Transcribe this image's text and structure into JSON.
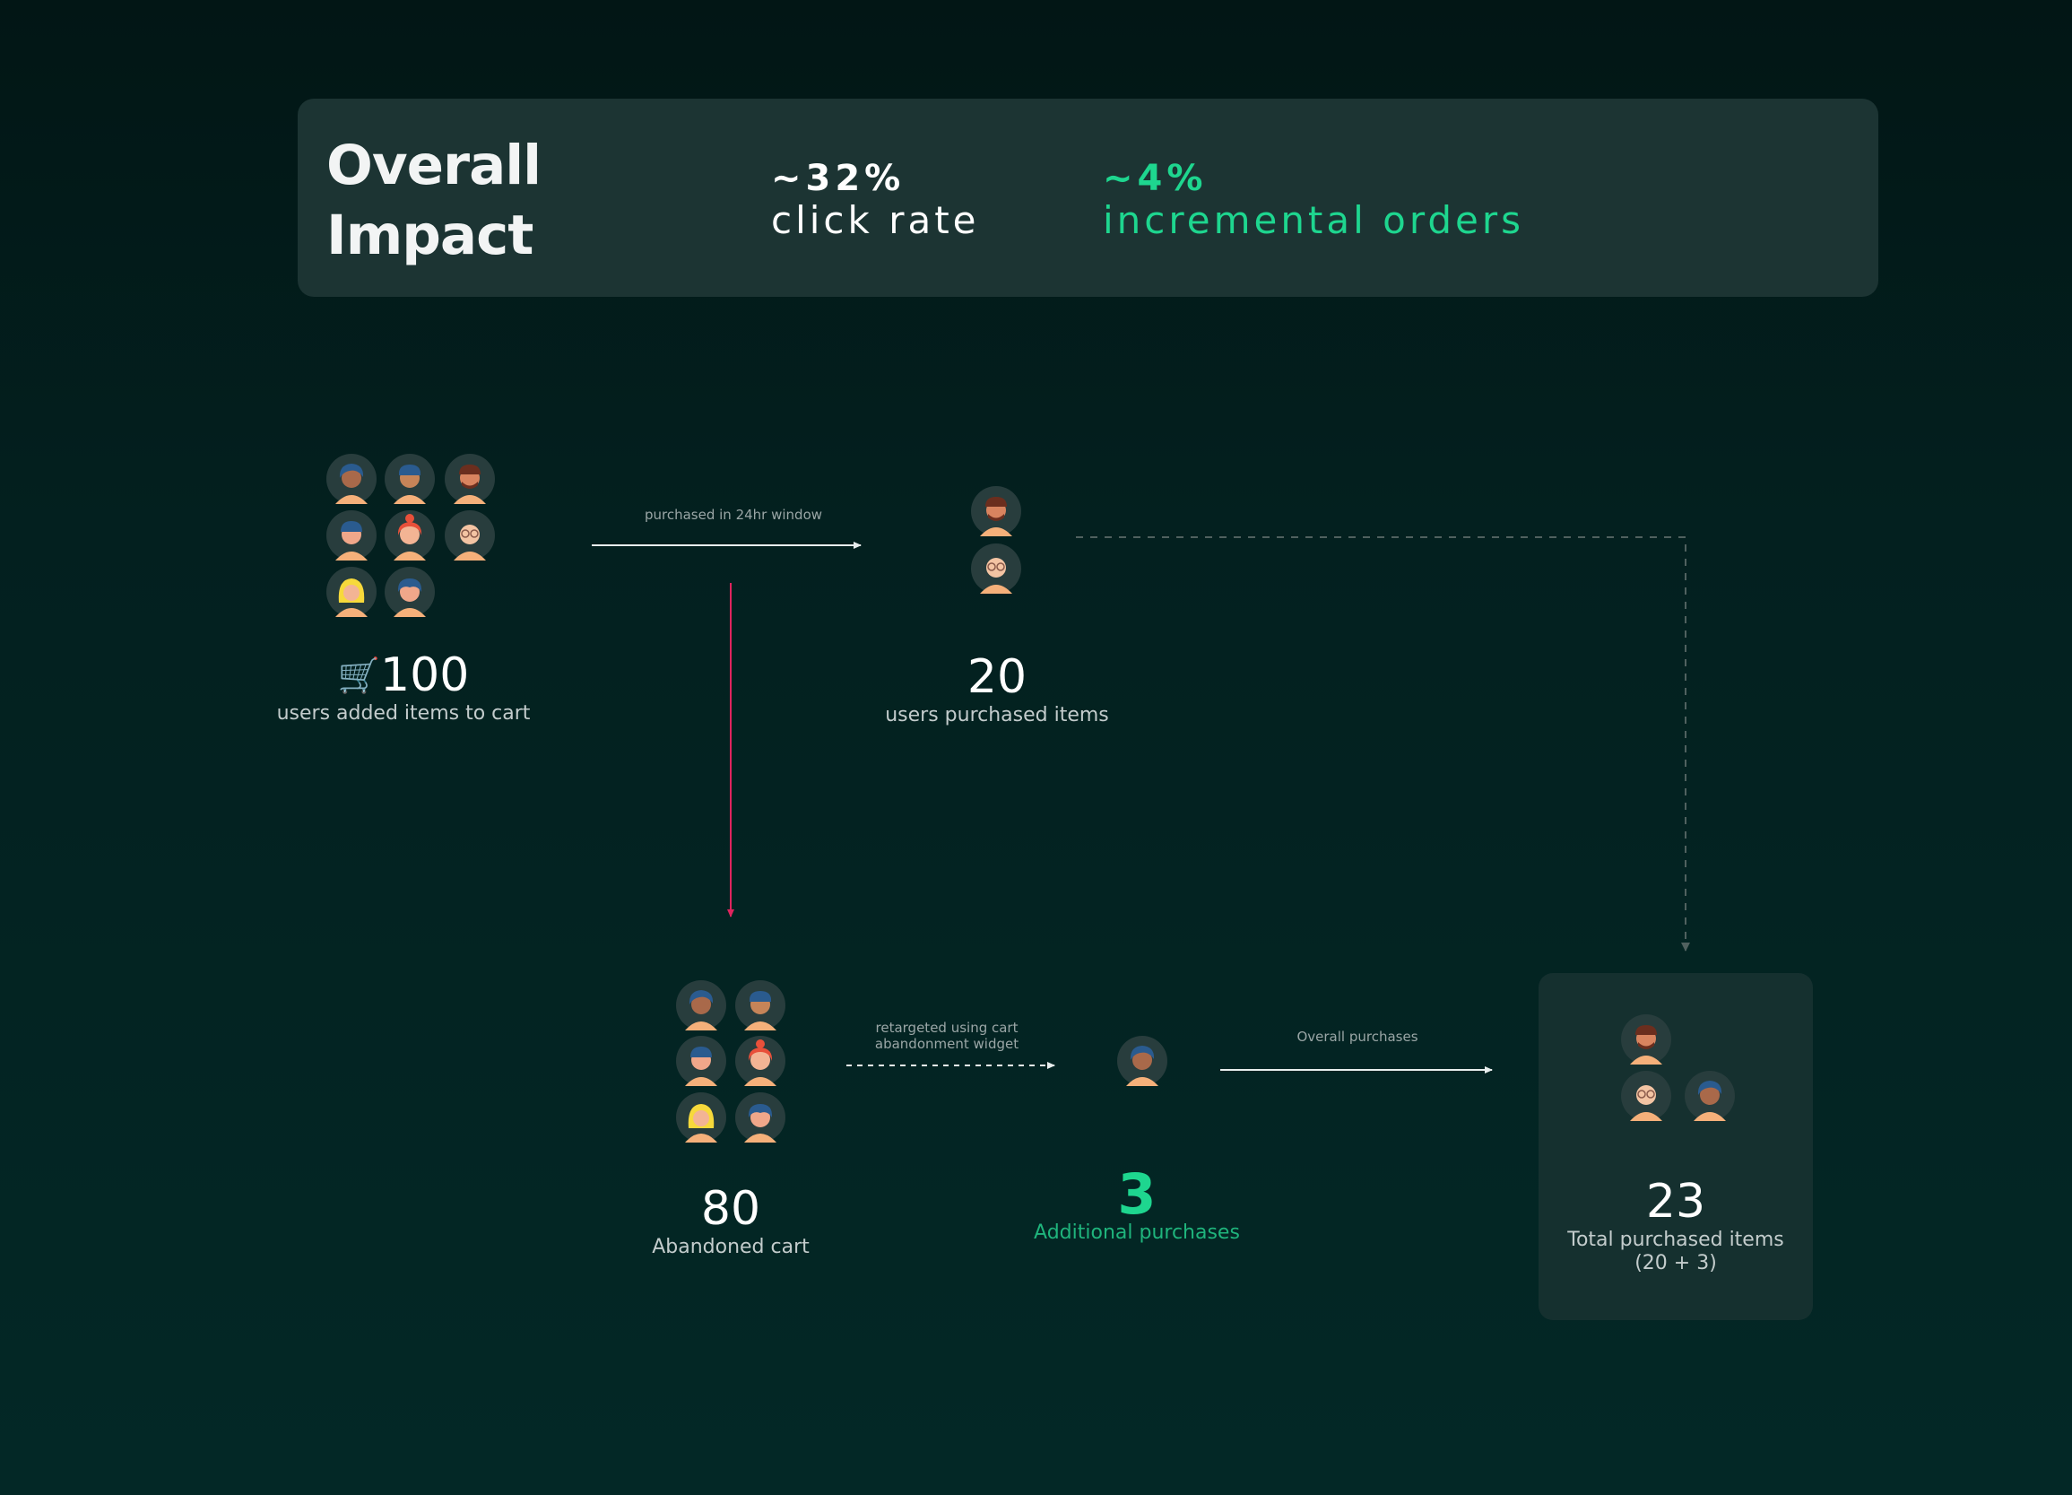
{
  "banner": {
    "title_line1": "Overall",
    "title_line2": "Impact",
    "metrics": [
      {
        "value": "~32%",
        "label": "click rate"
      },
      {
        "value": "~4%",
        "label": "incremental orders"
      }
    ]
  },
  "nodes": {
    "added_to_cart": {
      "icon": "shopping-cart-icon",
      "value": "100",
      "label": "users added items to cart"
    },
    "purchased": {
      "value": "20",
      "label": "users purchased items"
    },
    "abandoned": {
      "value": "80",
      "label": "Abandoned cart"
    },
    "additional": {
      "value": "3",
      "label": "Additional purchases"
    },
    "total": {
      "value": "23",
      "label_line1": "Total purchased items",
      "label_line2": "(20 + 3)"
    }
  },
  "edges": {
    "purchased_window": "purchased in 24hr window",
    "retargeted_line1": "retargeted using cart",
    "retargeted_line2": "abandonment widget",
    "overall_purchases": "Overall purchases"
  },
  "colors": {
    "accent_green": "#1ed68f",
    "abandon_arrow": "#e0245e",
    "banner_bg": "#1c3433"
  }
}
